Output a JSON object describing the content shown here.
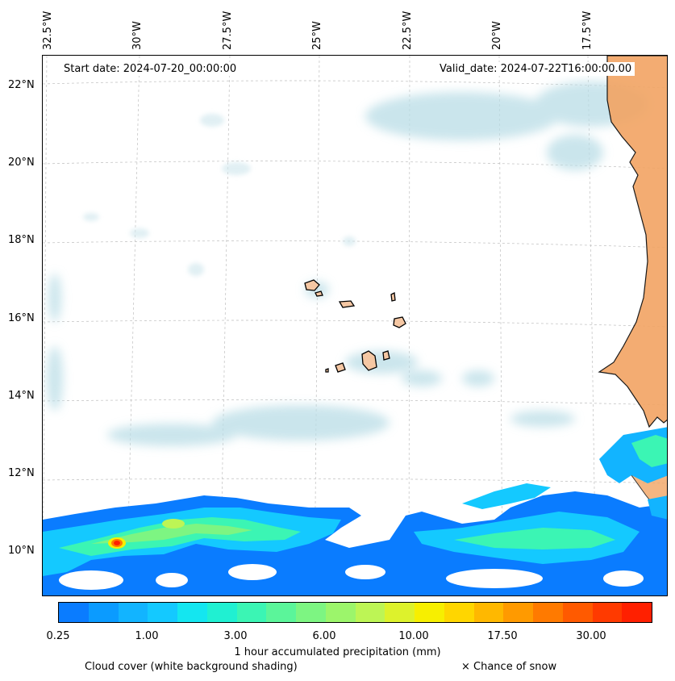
{
  "map": {
    "lon_labels": [
      "32.5°W",
      "30°W",
      "27.5°W",
      "25°W",
      "22.5°W",
      "20°W",
      "17.5°W"
    ],
    "lat_labels": [
      "22°N",
      "20°N",
      "18°N",
      "16°N",
      "14°N",
      "12°N",
      "10°N"
    ],
    "start_date": "Start date: 2024-07-20_00:00:00",
    "valid_date": "Valid_date: 2024-07-22T16:00:00.00"
  },
  "colorbar": {
    "colors": [
      "#0a7cff",
      "#0b9bff",
      "#12b4ff",
      "#14c9ff",
      "#14e6f0",
      "#20f0d2",
      "#3bf5b4",
      "#5bf59a",
      "#7df582",
      "#9cf56b",
      "#bdf555",
      "#ddf22c",
      "#f7ef00",
      "#ffd600",
      "#ffb800",
      "#ff9a00",
      "#ff7a00",
      "#ff5a00",
      "#ff3a00",
      "#ff2000"
    ],
    "ticks": [
      "0.25",
      "1.00",
      "3.00",
      "6.00",
      "10.00",
      "17.50",
      "30.00"
    ],
    "label": "1 hour accumulated precipitation (mm)"
  },
  "legend": {
    "cloud": "Cloud cover (white background shading)",
    "snow": "× Chance of snow"
  },
  "colors": {
    "land": "#f2a463",
    "cloud": "#b9dde6",
    "grid": "#bfbfbf"
  }
}
